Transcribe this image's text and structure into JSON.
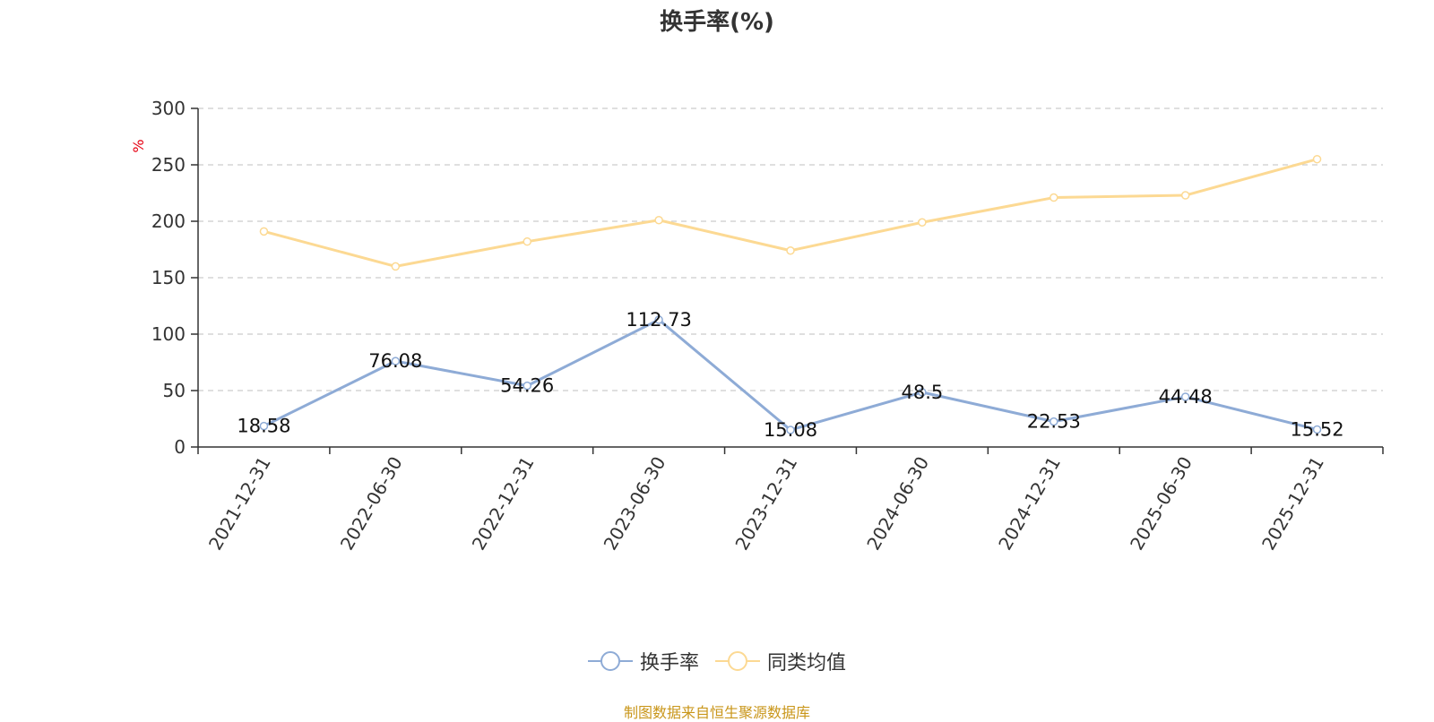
{
  "chart_data": {
    "type": "line",
    "title": "换手率(%)",
    "ylabel": "%",
    "ylim": [
      0,
      300
    ],
    "yticks": [
      0,
      50,
      100,
      150,
      200,
      250,
      300
    ],
    "grid": true,
    "legend_position": "bottom-center",
    "categories": [
      "2021-12-31",
      "2022-06-30",
      "2022-12-31",
      "2023-06-30",
      "2023-12-31",
      "2024-06-30",
      "2024-12-31",
      "2025-06-30",
      "2025-12-31"
    ],
    "series": [
      {
        "name": "换手率",
        "color": "#8eabd6",
        "values": [
          18.58,
          76.08,
          54.26,
          112.73,
          15.08,
          48.5,
          22.53,
          44.48,
          15.52
        ],
        "show_labels": true
      },
      {
        "name": "同类均值",
        "color": "#fcd993",
        "values": [
          191,
          160,
          182,
          201,
          174,
          199,
          221,
          223,
          255
        ],
        "show_labels": false
      }
    ]
  },
  "footer": {
    "source": "制图数据来自恒生聚源数据库"
  }
}
